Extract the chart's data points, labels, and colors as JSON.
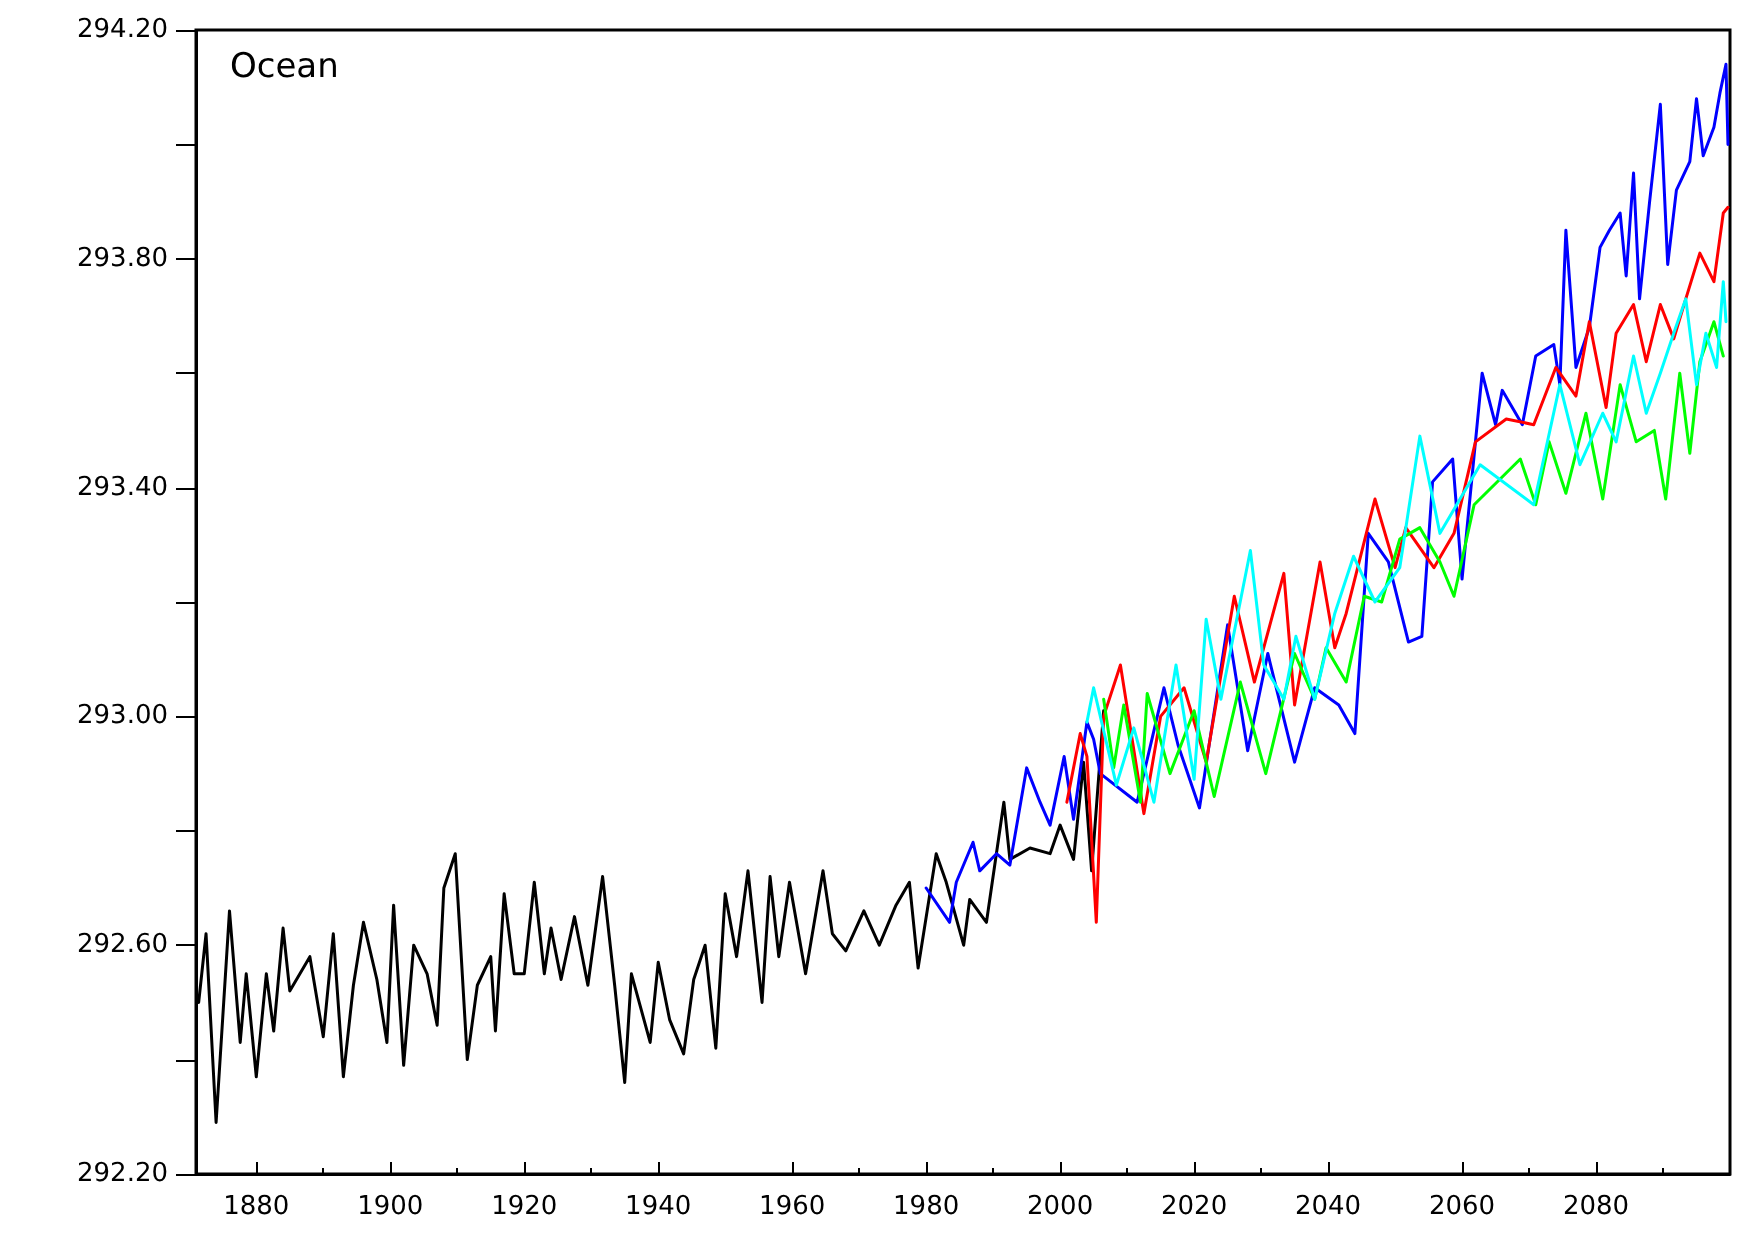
{
  "chart_data": {
    "type": "line",
    "title": "Ocean",
    "xlim": [
      1871,
      2100
    ],
    "xticks": [
      1880,
      1900,
      1920,
      1940,
      1960,
      1980,
      2000,
      2020,
      2040,
      2060,
      2080
    ],
    "ylim": [
      292.2,
      294.2
    ],
    "yticks": [
      {
        "value": 292.2,
        "label": "292.20"
      },
      {
        "value": 292.4,
        "label": null
      },
      {
        "value": 292.6,
        "label": "292.60"
      },
      {
        "value": 292.8,
        "label": null
      },
      {
        "value": 293.0,
        "label": "293.00"
      },
      {
        "value": 293.2,
        "label": null
      },
      {
        "value": 293.4,
        "label": "293.40"
      },
      {
        "value": 293.6,
        "label": null
      },
      {
        "value": 293.8,
        "label": "293.80"
      },
      {
        "value": 294.0,
        "label": null
      },
      {
        "value": 294.2,
        "label": "294.20"
      }
    ],
    "grid": false,
    "marker": "none",
    "line_style": "solid",
    "series": [
      {
        "color": "#000000",
        "x": [
          1871.4,
          1872.5,
          1874,
          1876,
          1877.6,
          1878.5,
          1880,
          1881.5,
          1882.6,
          1884,
          1885,
          1888,
          1890,
          1891.5,
          1893,
          1894.5,
          1896,
          1898,
          1899.5,
          1900.5,
          1902,
          1903.5,
          1905.5,
          1907,
          1908,
          1909.7,
          1911.5,
          1913,
          1915,
          1915.7,
          1917,
          1918.5,
          1920,
          1921.5,
          1923,
          1924,
          1925.5,
          1927.5,
          1929.5,
          1931.7,
          1933.5,
          1935,
          1936,
          1938.8,
          1940,
          1941.7,
          1943.8,
          1945.3,
          1947,
          1948.6,
          1950,
          1951.7,
          1953.4,
          1955.5,
          1956.7,
          1958,
          1959.6,
          1962,
          1964.6,
          1966,
          1968,
          1970.7,
          1973,
          1975.5,
          1977.5,
          1978.8,
          1981.5,
          1983,
          1985.6,
          1986.5,
          1989,
          1991.6,
          1992.5,
          1995.5,
          1998.5,
          2000,
          2002,
          2003.5,
          2004.7,
          2006.5
        ],
        "values": [
          292.5,
          292.62,
          292.29,
          292.66,
          292.43,
          292.55,
          292.37,
          292.55,
          292.45,
          292.63,
          292.52,
          292.58,
          292.44,
          292.62,
          292.37,
          292.53,
          292.64,
          292.54,
          292.43,
          292.67,
          292.39,
          292.6,
          292.55,
          292.46,
          292.7,
          292.76,
          292.4,
          292.53,
          292.58,
          292.45,
          292.69,
          292.55,
          292.55,
          292.71,
          292.55,
          292.63,
          292.54,
          292.65,
          292.53,
          292.72,
          292.53,
          292.36,
          292.55,
          292.43,
          292.57,
          292.47,
          292.41,
          292.54,
          292.6,
          292.42,
          292.69,
          292.58,
          292.73,
          292.5,
          292.72,
          292.58,
          292.71,
          292.55,
          292.73,
          292.62,
          292.59,
          292.66,
          292.6,
          292.67,
          292.71,
          292.56,
          292.76,
          292.71,
          292.6,
          292.68,
          292.64,
          292.85,
          292.75,
          292.77,
          292.76,
          292.81,
          292.75,
          292.92,
          292.73,
          293.01
        ]
      },
      {
        "color": "#0000ff",
        "x": [
          1980,
          1983.5,
          1984.5,
          1987,
          1988,
          1990.5,
          1992.5,
          1995,
          1997,
          1998.5,
          2000.6,
          2002,
          2004,
          2005,
          2006,
          2011.5,
          2015.5,
          2017.6,
          2020.8,
          2025,
          2028,
          2031,
          2035,
          2038,
          2041.6,
          2044,
          2046,
          2049,
          2052,
          2054,
          2055.6,
          2058.6,
          2060,
          2063,
          2065,
          2066,
          2069,
          2071,
          2073.7,
          2074.6,
          2075.5,
          2077,
          2079,
          2080.6,
          2082,
          2083.6,
          2084.5,
          2085.6,
          2086.5,
          2088,
          2089.6,
          2090.7,
          2092,
          2094,
          2095,
          2096,
          2097.6,
          2098.5,
          2099.4,
          2099.7
        ],
        "values": [
          292.7,
          292.64,
          292.71,
          292.78,
          292.73,
          292.76,
          292.74,
          292.91,
          292.85,
          292.81,
          292.93,
          292.82,
          292.99,
          292.96,
          292.9,
          292.85,
          293.05,
          292.95,
          292.84,
          293.16,
          292.94,
          293.11,
          292.92,
          293.05,
          293.02,
          292.97,
          293.32,
          293.27,
          293.13,
          293.14,
          293.41,
          293.45,
          293.24,
          293.6,
          293.51,
          293.57,
          293.51,
          293.63,
          293.65,
          293.58,
          293.85,
          293.61,
          293.68,
          293.82,
          293.85,
          293.88,
          293.77,
          293.95,
          293.73,
          293.9,
          294.07,
          293.79,
          293.92,
          293.97,
          294.08,
          293.98,
          294.03,
          294.09,
          294.14,
          294.0
        ]
      },
      {
        "color": "#ff0000",
        "x": [
          2001,
          2003,
          2004,
          2005.4,
          2006.5,
          2009,
          2012.5,
          2015,
          2018.5,
          2021.8,
          2026,
          2029,
          2033.4,
          2035,
          2038.8,
          2041,
          2042.7,
          2047,
          2050,
          2051.6,
          2055.8,
          2058.8,
          2062,
          2066.6,
          2070.7,
          2074,
          2077,
          2079,
          2081.5,
          2083,
          2085.6,
          2087.5,
          2089.6,
          2091.6,
          2093.4,
          2095.5,
          2097.6,
          2099,
          2099.7
        ],
        "values": [
          292.85,
          292.97,
          292.93,
          292.64,
          293.0,
          293.09,
          292.83,
          293.0,
          293.05,
          292.92,
          293.21,
          293.06,
          293.25,
          293.02,
          293.27,
          293.12,
          293.18,
          293.38,
          293.26,
          293.33,
          293.26,
          293.32,
          293.48,
          293.52,
          293.51,
          293.61,
          293.56,
          293.69,
          293.54,
          293.67,
          293.72,
          293.62,
          293.72,
          293.66,
          293.73,
          293.81,
          293.76,
          293.88,
          293.89
        ]
      },
      {
        "color": "#00ff00",
        "x": [
          2006.5,
          2008,
          2009.5,
          2012,
          2013,
          2016.4,
          2020,
          2023,
          2026.9,
          2030.7,
          2035,
          2038,
          2039.7,
          2042.7,
          2045.4,
          2048,
          2050.7,
          2053.7,
          2056.7,
          2058.8,
          2061.8,
          2068.7,
          2071,
          2073,
          2075.5,
          2078.5,
          2081,
          2083.6,
          2086,
          2088.7,
          2090.4,
          2092.5,
          2094,
          2095.5,
          2097.6,
          2099
        ],
        "values": [
          293.03,
          292.91,
          293.02,
          292.85,
          293.04,
          292.9,
          293.01,
          292.86,
          293.06,
          292.9,
          293.11,
          293.03,
          293.12,
          293.06,
          293.21,
          293.2,
          293.31,
          293.33,
          293.27,
          293.21,
          293.37,
          293.45,
          293.37,
          293.48,
          293.39,
          293.53,
          293.38,
          293.58,
          293.48,
          293.5,
          293.38,
          293.6,
          293.46,
          293.62,
          293.69,
          293.63
        ]
      },
      {
        "color": "#00ffff",
        "x": [
          2004,
          2005,
          2008.4,
          2011,
          2014,
          2017.3,
          2020,
          2021.8,
          2024,
          2028.4,
          2030.4,
          2033.4,
          2035.2,
          2038,
          2041,
          2043.8,
          2047,
          2050.7,
          2053.7,
          2056.7,
          2059.7,
          2062.7,
          2070.7,
          2074.6,
          2077.6,
          2081,
          2083,
          2085.6,
          2087.5,
          2089.6,
          2091.6,
          2093.4,
          2095,
          2096.4,
          2098,
          2099,
          2099.4
        ],
        "values": [
          292.99,
          293.05,
          292.88,
          292.98,
          292.85,
          293.09,
          292.89,
          293.17,
          293.03,
          293.29,
          293.09,
          293.03,
          293.14,
          293.03,
          293.18,
          293.28,
          293.2,
          293.26,
          293.49,
          293.32,
          293.38,
          293.44,
          293.37,
          293.58,
          293.44,
          293.53,
          293.48,
          293.63,
          293.53,
          293.6,
          293.67,
          293.73,
          293.58,
          293.67,
          293.61,
          293.76,
          293.69
        ]
      }
    ]
  }
}
